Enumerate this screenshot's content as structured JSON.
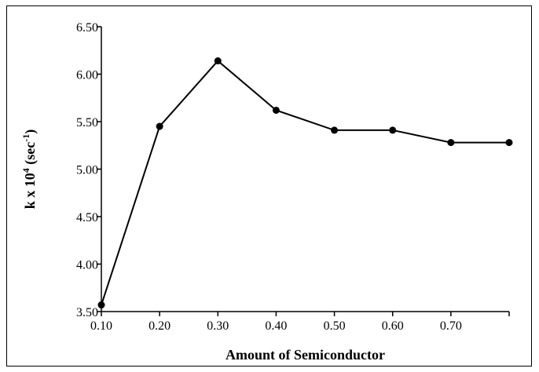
{
  "chart_data": {
    "type": "line",
    "title": "",
    "xlabel": "Amount of Semiconductor",
    "ylabel": {
      "prefix": "k x 10",
      "exponent": "4",
      "unit_open": " (sec",
      "unit_exponent": "-1",
      "unit_close": ")"
    },
    "x": [
      0.1,
      0.2,
      0.3,
      0.4,
      0.5,
      0.6,
      0.7,
      0.8
    ],
    "series": [
      {
        "values": [
          3.57,
          5.45,
          6.14,
          5.62,
          5.41,
          5.41,
          5.28,
          5.28
        ]
      }
    ],
    "xlim": [
      0.1,
      0.8
    ],
    "ylim": [
      3.5,
      6.5
    ],
    "x_ticks": [
      0.1,
      0.2,
      0.3,
      0.4,
      0.5,
      0.6,
      0.7,
      0.8
    ],
    "x_tick_labels": [
      "0.10",
      "0.20",
      "0.30",
      "0.40",
      "0.50",
      "0.60",
      "0.70",
      ""
    ],
    "y_ticks": [
      3.5,
      4.0,
      4.5,
      5.0,
      5.5,
      6.0,
      6.5
    ],
    "y_tick_labels": [
      "3.50",
      "4.00",
      "4.50",
      "5.00",
      "5.50",
      "6.00",
      "6.50"
    ],
    "grid": false,
    "legend": "none",
    "colors": {
      "line": "#000000",
      "marker": "#000000",
      "axis": "#000000"
    },
    "marker": "filled-circle"
  }
}
